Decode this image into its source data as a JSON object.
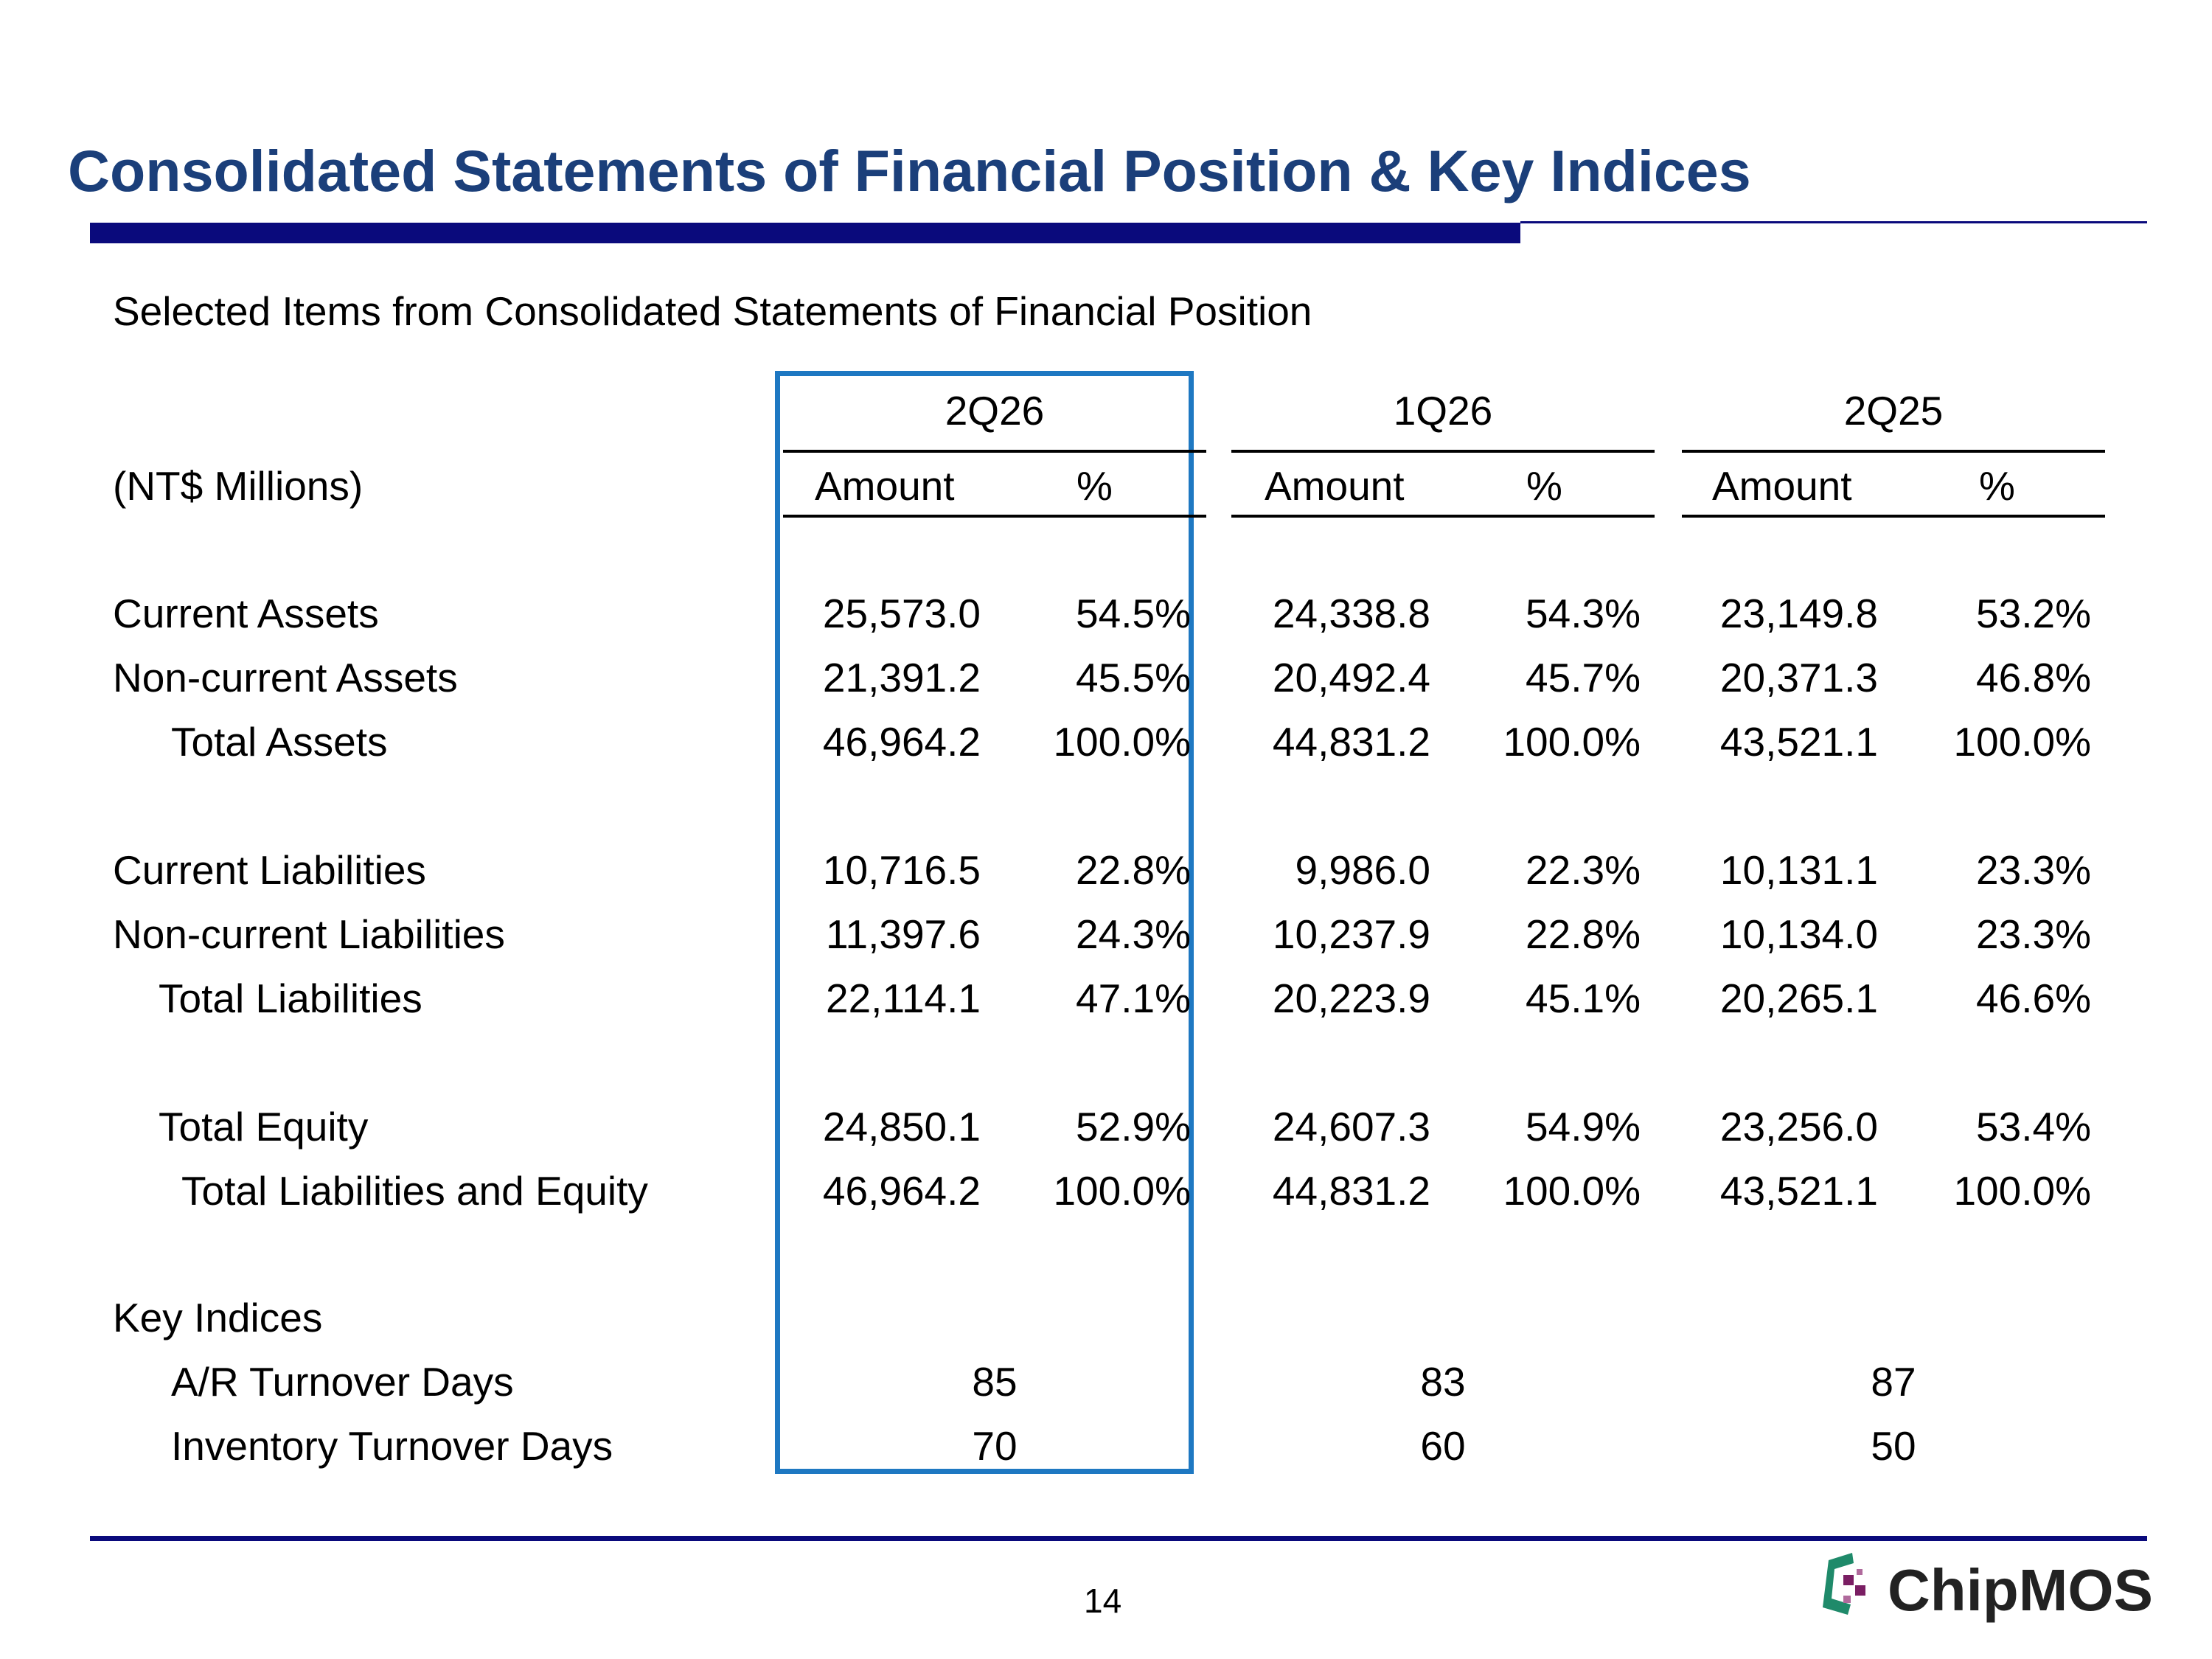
{
  "title": "Consolidated Statements of Financial Position & Key Indices",
  "subtitle": "Selected Items from Consolidated Statements of Financial Position",
  "units": "(NT$ Millions)",
  "periods": [
    "2Q26",
    "1Q26",
    "2Q25"
  ],
  "col_amount": "Amount",
  "col_pct": "%",
  "rows": [
    {
      "label": "Current Assets",
      "values": [
        "25,573.0",
        "54.5%",
        "24,338.8",
        "54.3%",
        "23,149.8",
        "53.2%"
      ]
    },
    {
      "label": "Non-current Assets",
      "values": [
        "21,391.2",
        "45.5%",
        "20,492.4",
        "45.7%",
        "20,371.3",
        "46.8%"
      ]
    },
    {
      "label": "Total Assets",
      "values": [
        "46,964.2",
        "100.0%",
        "44,831.2",
        "100.0%",
        "43,521.1",
        "100.0%"
      ]
    },
    {
      "label": "Current Liabilities",
      "values": [
        "10,716.5",
        "22.8%",
        "9,986.0",
        "22.3%",
        "10,131.1",
        "23.3%"
      ]
    },
    {
      "label": "Non-current Liabilities",
      "values": [
        "11,397.6",
        "24.3%",
        "10,237.9",
        "22.8%",
        "10,134.0",
        "23.3%"
      ]
    },
    {
      "label": "Total Liabilities",
      "values": [
        "22,114.1",
        "47.1%",
        "20,223.9",
        "45.1%",
        "20,265.1",
        "46.6%"
      ]
    },
    {
      "label": "Total Equity",
      "values": [
        "24,850.1",
        "52.9%",
        "24,607.3",
        "54.9%",
        "23,256.0",
        "53.4%"
      ]
    },
    {
      "label": "Total Liabilities and Equity",
      "values": [
        "46,964.2",
        "100.0%",
        "44,831.2",
        "100.0%",
        "43,521.1",
        "100.0%"
      ]
    }
  ],
  "key_indices": {
    "heading": "Key Indices",
    "rows": [
      {
        "label": "A/R Turnover Days",
        "values": [
          "85",
          "83",
          "87"
        ]
      },
      {
        "label": "Inventory Turnover Days",
        "values": [
          "70",
          "60",
          "50"
        ]
      }
    ]
  },
  "page_number": "14",
  "logo_text": "ChipMOS",
  "colors": {
    "title": "#1b3f7a",
    "rule": "#0a0a7c",
    "highlight": "#1e78c2",
    "logo_green": "#1f8a6a",
    "logo_purple": "#7a1e63"
  }
}
